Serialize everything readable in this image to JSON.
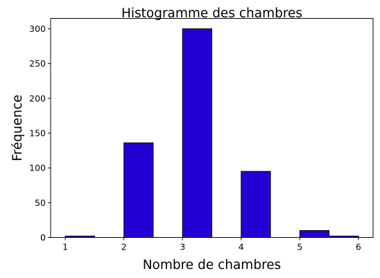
{
  "chart_data": {
    "type": "bar",
    "title": "Histogramme des chambres",
    "xlabel": "Nombre de chambres",
    "ylabel": "Fréquence",
    "bin_edges": [
      1,
      1.5,
      2,
      2.5,
      3,
      3.5,
      4,
      4.5,
      5,
      5.5,
      6
    ],
    "values": [
      2,
      0,
      136,
      0,
      300,
      0,
      95,
      0,
      10,
      2
    ],
    "xlim": [
      0.75,
      6.25
    ],
    "ylim": [
      0,
      315
    ],
    "xticks": [
      1,
      2,
      3,
      4,
      5,
      6
    ],
    "yticks": [
      0,
      50,
      100,
      150,
      200,
      250,
      300
    ],
    "bar_color": "#2200d4",
    "edge_color": "#000000",
    "grid": false,
    "legend": false
  }
}
